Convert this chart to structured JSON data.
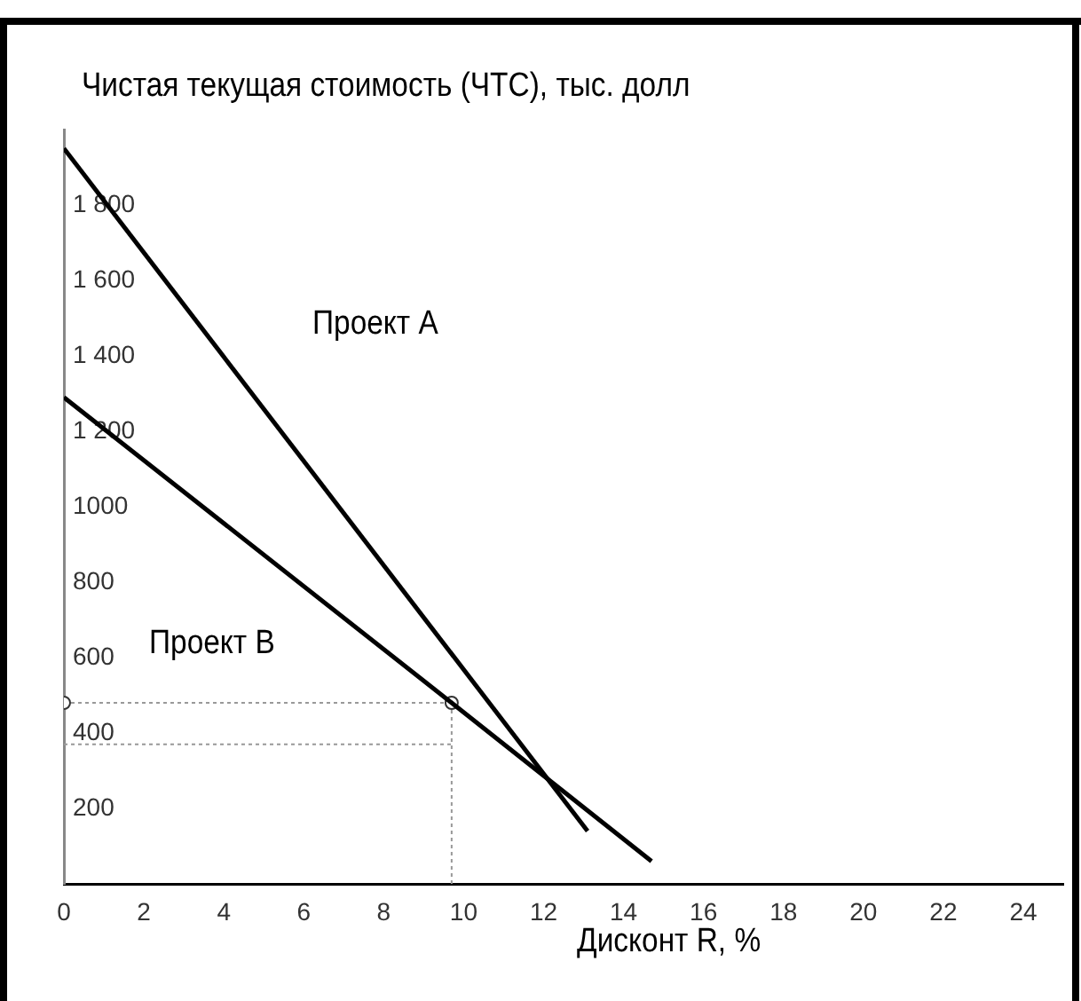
{
  "chart_data": {
    "type": "line",
    "ylabel": "Чистая текущая стоимость (ЧТС), тыс. долл",
    "xlabel": "Дисконт R, %",
    "series": [
      {
        "x": [
          0,
          13.1
        ],
        "values": [
          1950,
          140
        ],
        "color": "#000000"
      },
      {
        "x": [
          0,
          9.7,
          14.7
        ],
        "values": [
          1290,
          480,
          60
        ],
        "color": "#000000"
      },
      {
        "type": "line",
        "x": [
          0,
          9.7
        ],
        "values": [
          480,
          480
        ],
        "color": "#999999",
        "line_style": "dotted",
        "marker": "circle"
      },
      {
        "type": "line",
        "x": [
          0,
          9.7
        ],
        "values": [
          370,
          370
        ],
        "color": "#999999",
        "line_style": "dotted"
      },
      {
        "type": "line",
        "x": [
          9.7,
          9.7
        ],
        "values": [
          0,
          480
        ],
        "color": "#999999",
        "line_style": "dotted"
      }
    ],
    "annotations": [
      "Проект А",
      "Проект В"
    ],
    "xlim": [
      0,
      25
    ],
    "xticks": [
      0,
      2,
      4,
      6,
      8,
      10,
      12,
      14,
      16,
      18,
      20,
      22,
      24
    ],
    "ylim": [
      0,
      2000
    ],
    "yticks": [
      {
        "value": 200,
        "label": "200"
      },
      {
        "value": 400,
        "label": "400"
      },
      {
        "value": 600,
        "label": "600"
      },
      {
        "value": 800,
        "label": "800"
      },
      {
        "value": 1000,
        "label": "1000"
      },
      {
        "value": 1200,
        "label": "1 200"
      },
      {
        "value": 1400,
        "label": "1 400"
      },
      {
        "value": 1600,
        "label": "1 600"
      },
      {
        "value": 1800,
        "label": "1 800"
      }
    ],
    "grid": false,
    "legend": false,
    "marker": "none",
    "line_style": "solid"
  }
}
